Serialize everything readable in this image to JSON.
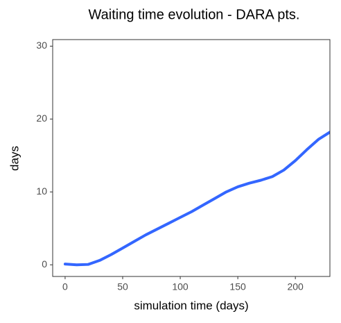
{
  "chart_data": {
    "type": "line",
    "title": "Waiting time evolution - DARA pts.",
    "x_label": "simulation time (days)",
    "y_label": "days",
    "x": [
      0,
      10,
      20,
      30,
      40,
      50,
      60,
      70,
      80,
      90,
      100,
      110,
      120,
      130,
      140,
      150,
      160,
      170,
      180,
      190,
      200,
      210,
      220,
      230
    ],
    "series": [
      {
        "name": "DARA",
        "color": "#3366ff",
        "values": [
          0.1,
          0.0,
          0.05,
          0.6,
          1.4,
          2.3,
          3.2,
          4.1,
          4.9,
          5.7,
          6.5,
          7.3,
          8.2,
          9.1,
          10.0,
          10.7,
          11.2,
          11.6,
          12.1,
          13.0,
          14.3,
          15.8,
          17.2,
          18.2
        ]
      }
    ],
    "xlim": [
      -10.8,
      230
    ],
    "ylim": [
      -1.6,
      30.9
    ],
    "xticks": [
      0,
      50,
      100,
      150,
      200
    ],
    "yticks": [
      0,
      10,
      20,
      30
    ],
    "grid": false
  }
}
